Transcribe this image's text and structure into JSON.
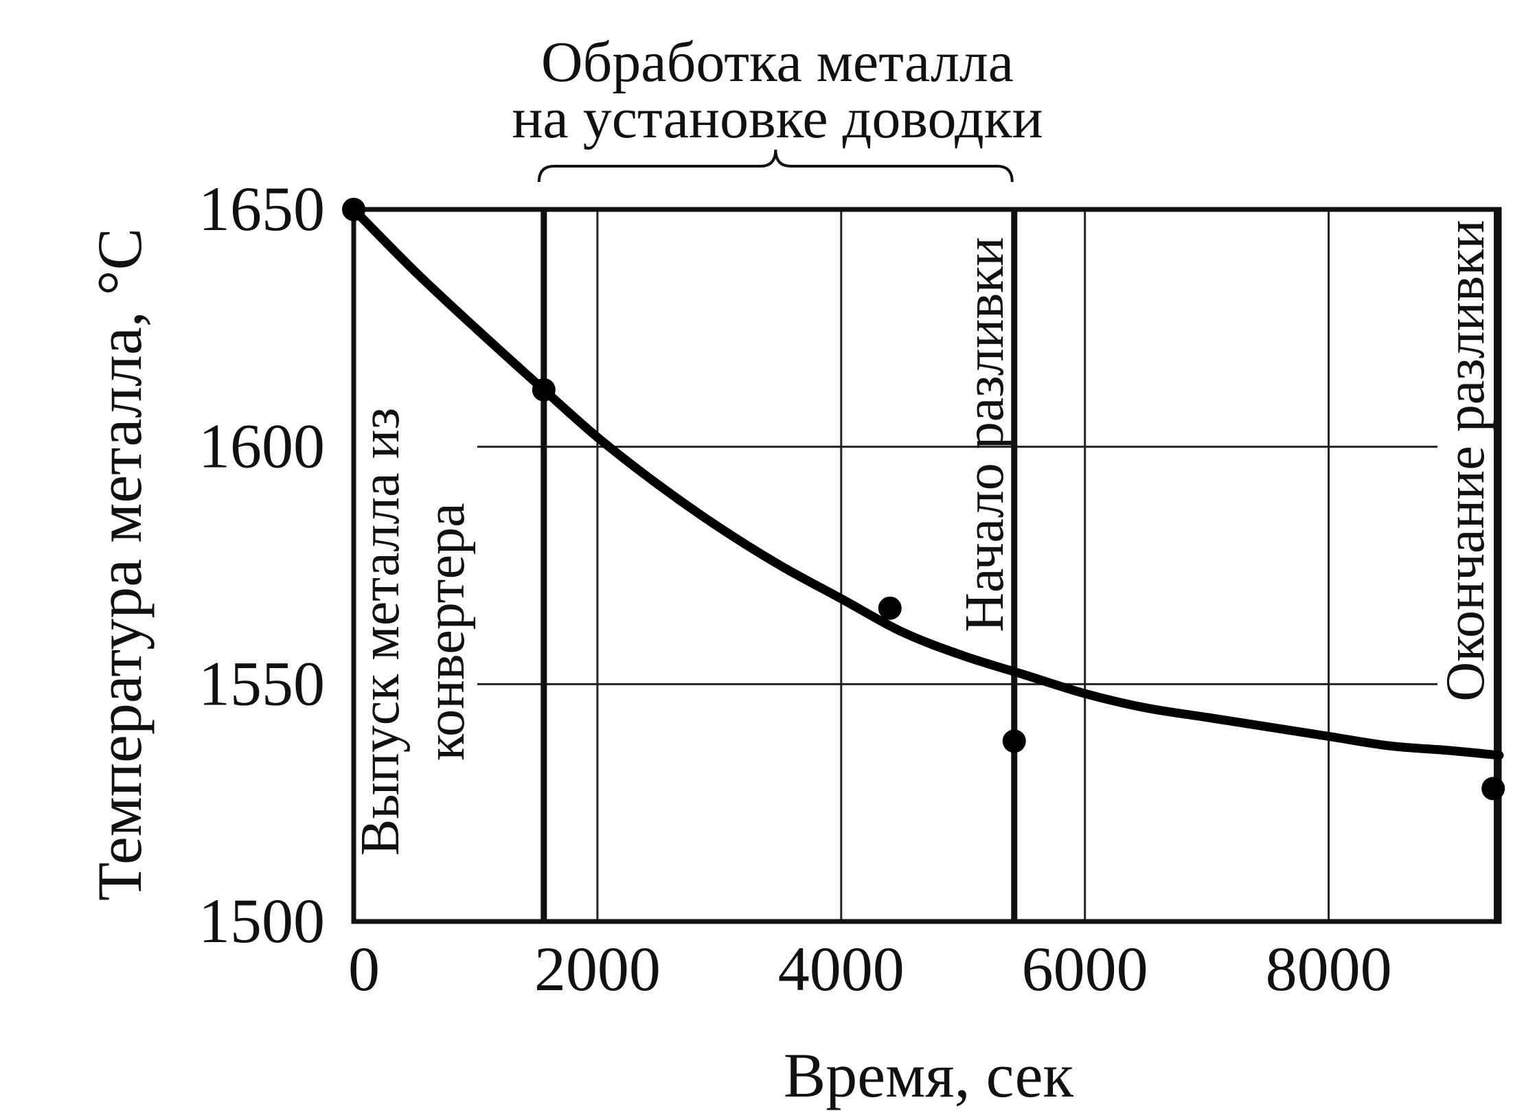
{
  "chart_data": {
    "type": "line",
    "xlabel": "Время, сек",
    "ylabel": "Температура металла, °С",
    "xlim": [
      0,
      9400
    ],
    "ylim": [
      1500,
      1650
    ],
    "x_ticks": [
      "0",
      "2000",
      "4000",
      "6000",
      "8000"
    ],
    "x_tick_values": [
      0,
      2000,
      4000,
      6000,
      8000
    ],
    "y_ticks": [
      "1500",
      "1550",
      "1600",
      "1650"
    ],
    "y_tick_values": [
      1500,
      1550,
      1600,
      1650
    ],
    "grid": true,
    "series": [
      {
        "kind": "curve",
        "x": [
          0,
          500,
          1000,
          1560,
          2000,
          2500,
          3000,
          3500,
          4000,
          4500,
          5000,
          5500,
          6000,
          6500,
          7000,
          7500,
          8000,
          8500,
          9000,
          9400
        ],
        "y": [
          1650,
          1637,
          1625,
          1612,
          1602,
          1592,
          1583,
          1575,
          1568,
          1561,
          1556,
          1552,
          1548,
          1545,
          1543,
          1541,
          1539,
          1537,
          1536,
          1535
        ]
      },
      {
        "kind": "points",
        "x": [
          0,
          1560,
          4400,
          5420,
          9350
        ],
        "y": [
          1650,
          1612,
          1566,
          1538,
          1528
        ]
      }
    ],
    "markers": [
      {
        "x": 1560,
        "label_lines": [
          "Выпуск металла из",
          "конвертера"
        ]
      },
      {
        "x": 5420,
        "label_lines": [
          "Начало разливки"
        ]
      },
      {
        "x": 9380,
        "label_lines": [
          "Окончание разливки"
        ]
      }
    ],
    "bracket": {
      "x_start": 1560,
      "x_end": 5420,
      "label_lines": [
        "Обработка металла",
        "на установке доводки"
      ]
    }
  }
}
